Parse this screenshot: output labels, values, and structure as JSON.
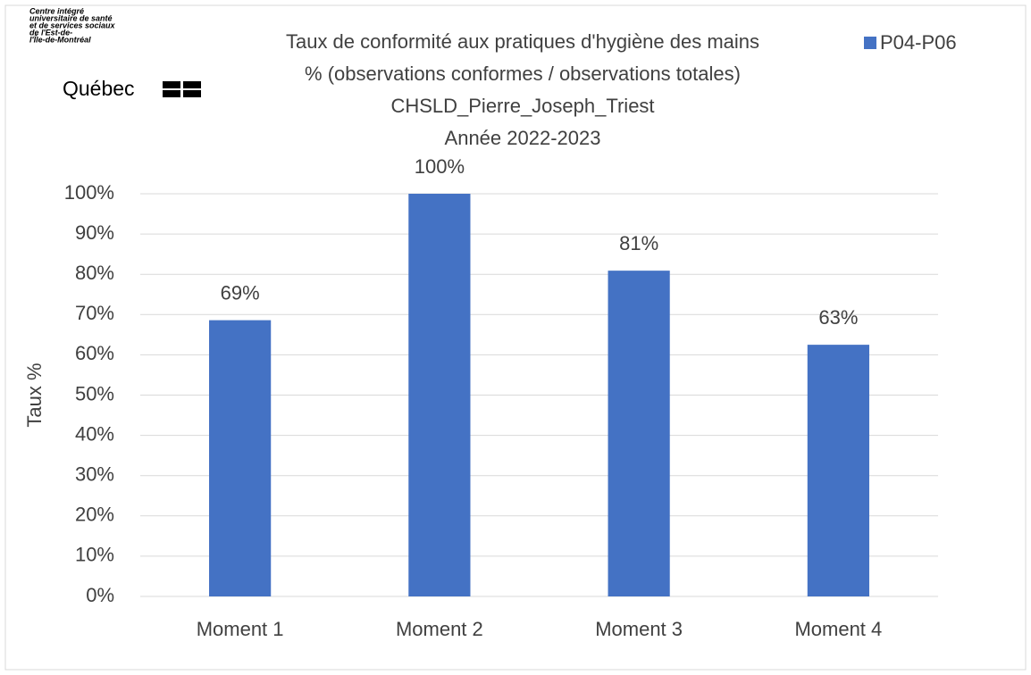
{
  "chart_data": {
    "type": "bar",
    "logo": {
      "lines": [
        "Centre intégré",
        "universitaire de santé",
        "et de services sociaux",
        "de l'Est-de-",
        "l'Île-de-Montréal"
      ],
      "brand": "Québec"
    },
    "title": [
      "Taux de conformité aux pratiques d'hygiène des mains",
      "% (observations conformes / observations totales)",
      "CHSLD_Pierre_Joseph_Triest",
      "Année 2022-2023"
    ],
    "ylabel": "Taux %",
    "categories": [
      "Moment 1",
      "Moment 2",
      "Moment 3",
      "Moment 4"
    ],
    "series": [
      {
        "name": "P04-P06",
        "color": "#4472c4",
        "values": [
          68.6,
          100,
          80.9,
          62.5
        ],
        "value_labels": [
          "69%",
          "100%",
          "81%",
          "63%"
        ]
      }
    ],
    "ylim": [
      0,
      100
    ],
    "yticks": [
      {
        "value": 0,
        "label": "0%"
      },
      {
        "value": 10,
        "label": "10%"
      },
      {
        "value": 20,
        "label": "20%"
      },
      {
        "value": 30,
        "label": "30%"
      },
      {
        "value": 40,
        "label": "40%"
      },
      {
        "value": 50,
        "label": "50%"
      },
      {
        "value": 60,
        "label": "60%"
      },
      {
        "value": 70,
        "label": "70%"
      },
      {
        "value": 80,
        "label": "80%"
      },
      {
        "value": 90,
        "label": "90%"
      },
      {
        "value": 100,
        "label": "100%"
      }
    ],
    "grid": true,
    "legend": "top-right"
  }
}
